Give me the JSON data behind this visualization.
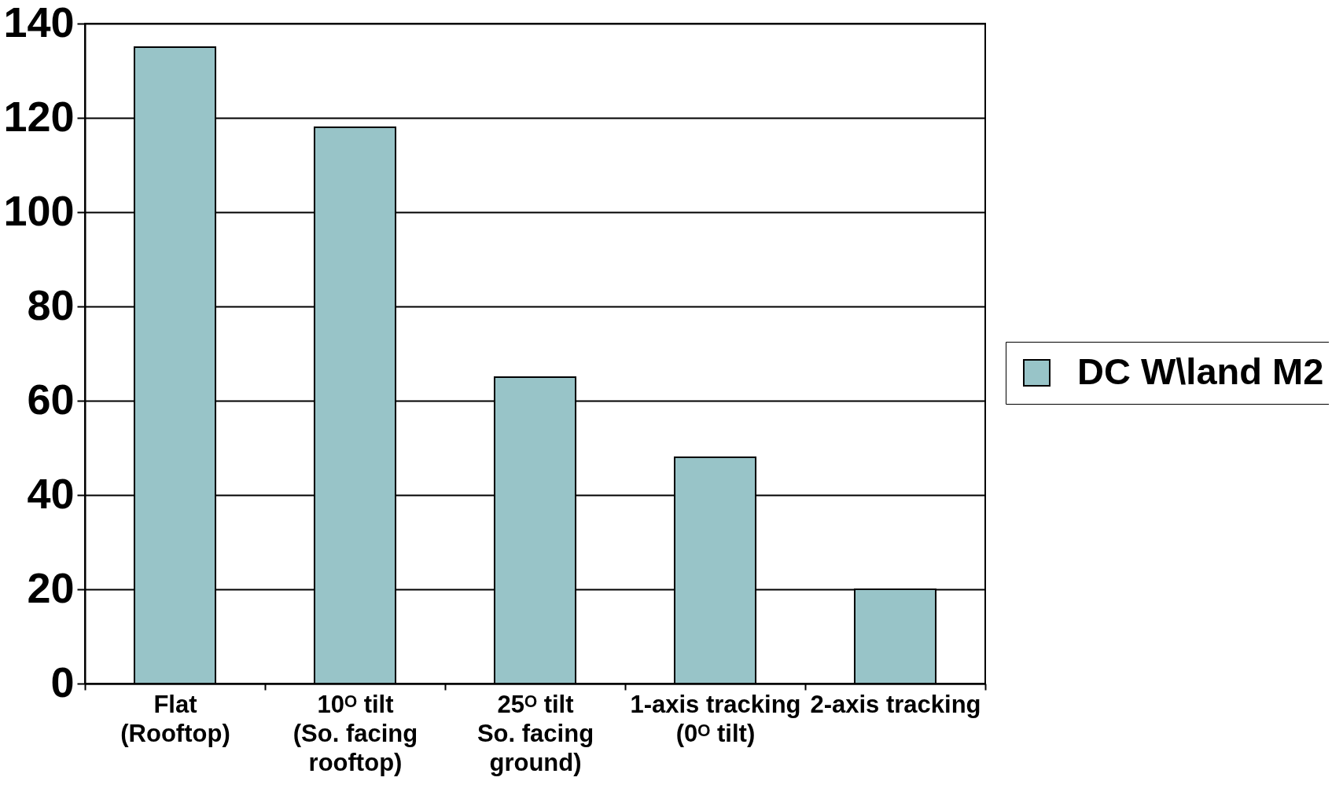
{
  "chart_data": {
    "type": "bar",
    "categories": [
      "Flat\n(Rooftop)",
      "10ᴼ tilt\n(So. facing\nrooftop)",
      "25ᴼ tilt\nSo. facing\nground)",
      "1-axis tracking\n(0ᴼ tilt)",
      "2-axis tracking"
    ],
    "series": [
      {
        "name": "DC W\\land M2",
        "color": "#98c4c8",
        "values": [
          135,
          118,
          65,
          48,
          20
        ]
      }
    ],
    "ylim": [
      0,
      140
    ],
    "yticks": [
      0,
      20,
      40,
      60,
      80,
      100,
      120,
      140
    ],
    "grid": "y",
    "legend": "right"
  }
}
